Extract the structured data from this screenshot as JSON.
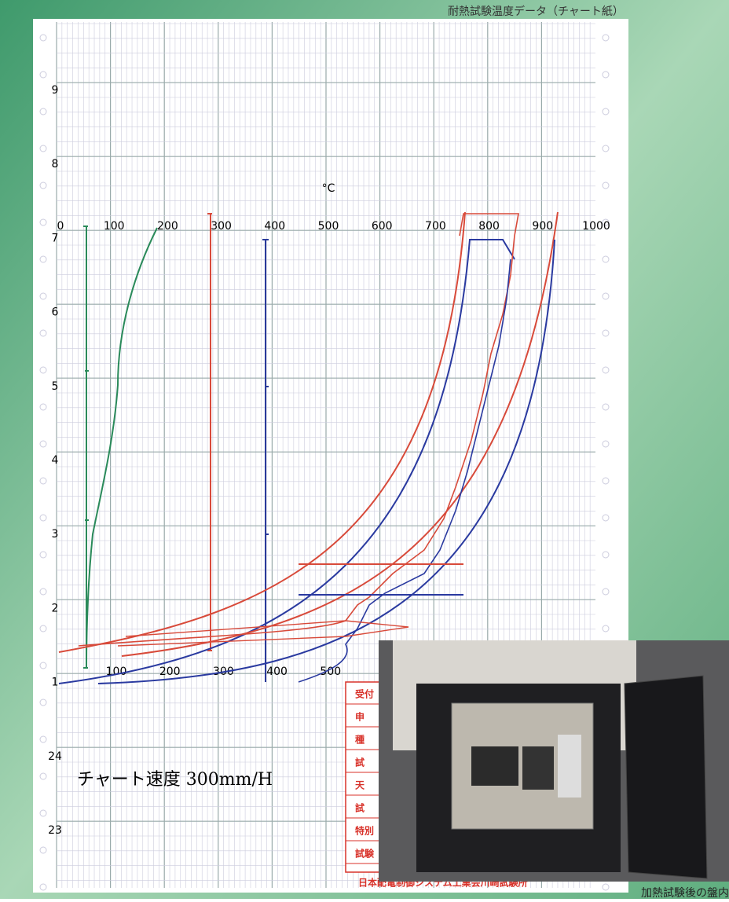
{
  "header": {
    "title": "耐熱試験温度データ（チャート紙）"
  },
  "chart": {
    "unit": "°C",
    "temperature_labels": [
      0,
      100,
      200,
      300,
      400,
      500,
      600,
      700,
      800,
      900,
      1000
    ],
    "lower_labels": [
      100,
      200,
      300,
      400,
      500
    ],
    "time_labels": [
      9,
      8,
      7,
      6,
      5,
      4,
      3,
      2,
      1,
      24,
      23
    ],
    "speed_note": "チャート速度 300mm/H"
  },
  "form": {
    "rows": [
      "受付",
      "申",
      "種",
      "試",
      "天",
      "試",
      "特別",
      "試験"
    ],
    "footer": "日本配電制御システム工業会川崎試験所"
  },
  "photo": {
    "caption": "加熱試験後の盤内"
  }
}
